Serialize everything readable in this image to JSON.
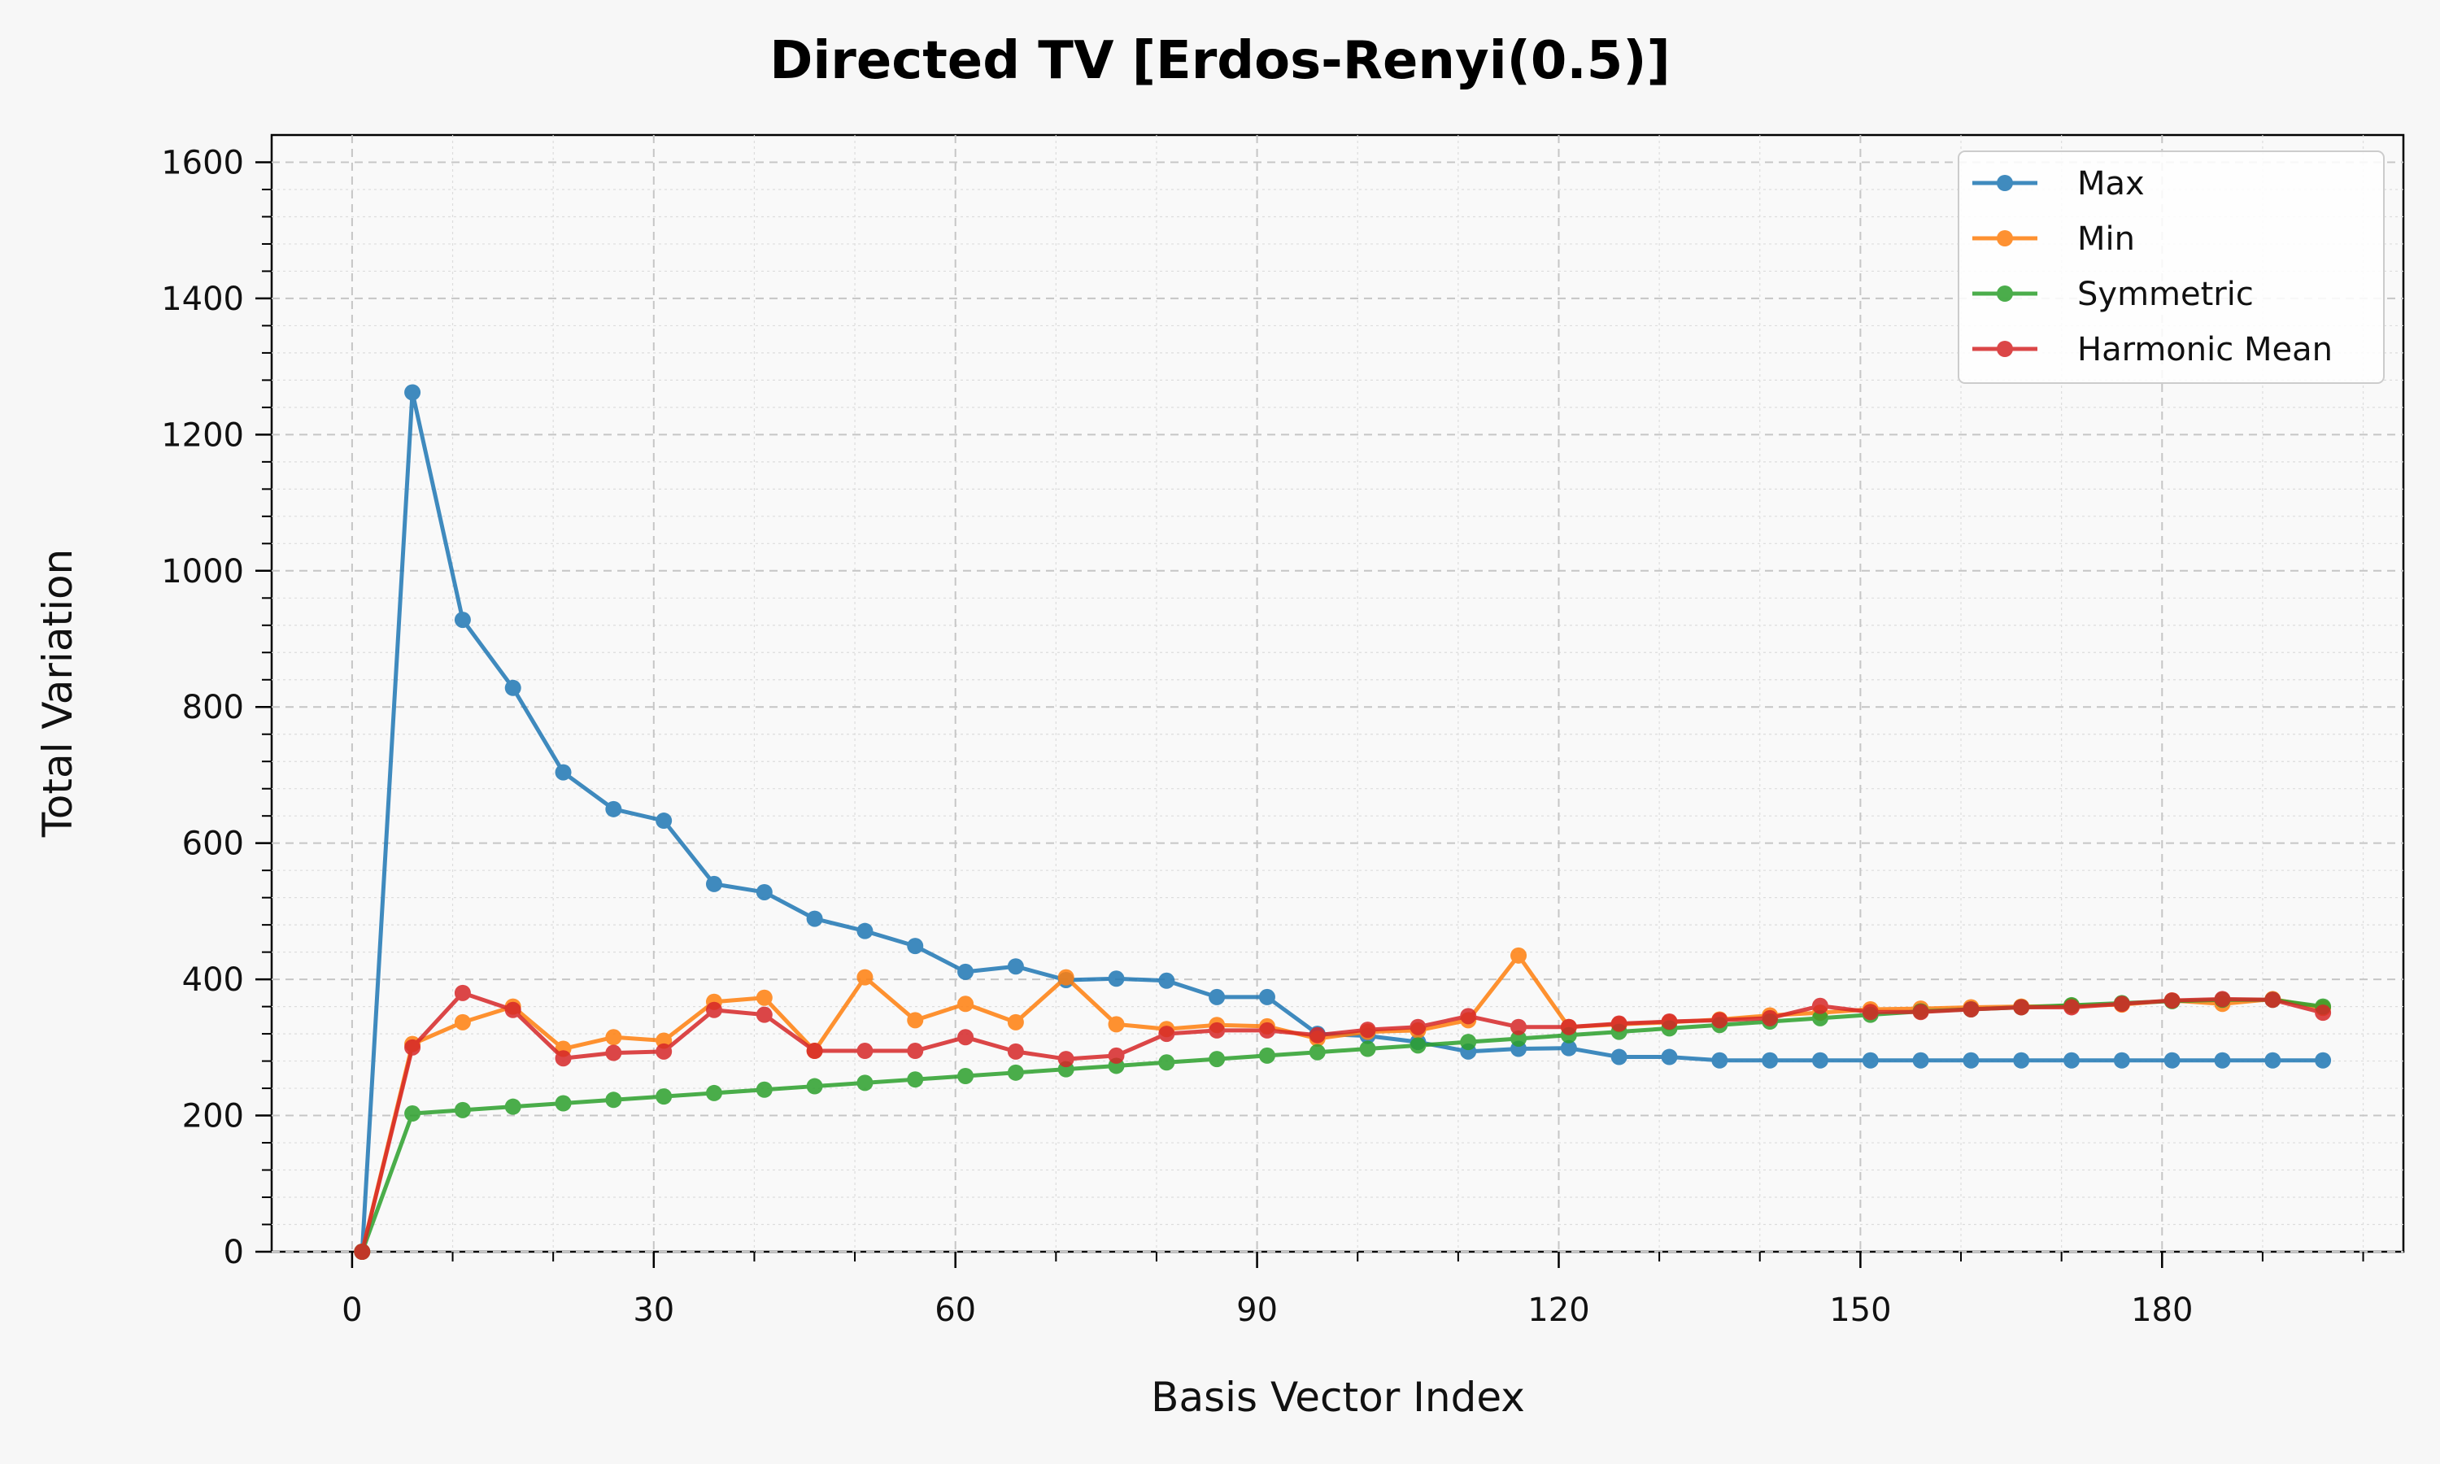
{
  "chart_data": {
    "type": "line",
    "title": "Directed TV [Erdos-Renyi(0.5)]",
    "xlabel": "Basis Vector Index",
    "ylabel": "Total Variation",
    "xlim": [
      -8,
      204
    ],
    "ylim": [
      0,
      1640
    ],
    "xticks": [
      0,
      30,
      60,
      90,
      120,
      150,
      180
    ],
    "yticks": [
      0,
      200,
      400,
      600,
      800,
      1000,
      1200,
      1400,
      1600
    ],
    "grid": true,
    "legend_position": "top-right",
    "x": [
      1,
      6,
      11,
      16,
      21,
      26,
      31,
      36,
      41,
      46,
      51,
      56,
      61,
      66,
      71,
      76,
      81,
      86,
      91,
      96,
      101,
      106,
      111,
      116,
      121,
      126,
      131,
      136,
      141,
      146,
      151,
      156,
      161,
      166,
      171,
      176,
      181,
      186,
      191,
      196
    ],
    "series": [
      {
        "name": "Max",
        "color": "#1f77b4",
        "values": [
          0,
          1262,
          928,
          828,
          704,
          650,
          633,
          540,
          528,
          489,
          471,
          449,
          411,
          419,
          399,
          401,
          398,
          374,
          374,
          320,
          317,
          308,
          294,
          298,
          299,
          286,
          286,
          281,
          281,
          281,
          281,
          281,
          281,
          281,
          281,
          281,
          281,
          281,
          281,
          281
        ]
      },
      {
        "name": "Min",
        "color": "#ff7f0e",
        "values": [
          0,
          305,
          337,
          360,
          298,
          315,
          310,
          367,
          373,
          295,
          403,
          340,
          364,
          337,
          403,
          334,
          327,
          333,
          331,
          313,
          323,
          325,
          340,
          435,
          330,
          334,
          337,
          341,
          347,
          351,
          356,
          357,
          359,
          360,
          361,
          363,
          369,
          364,
          371,
          358
        ]
      },
      {
        "name": "Symmetric",
        "color": "#2ca02c",
        "values": [
          0,
          203,
          208,
          213,
          218,
          223,
          228,
          233,
          238,
          243,
          248,
          253,
          258,
          263,
          268,
          273,
          278,
          283,
          288,
          293,
          298,
          303,
          308,
          313,
          318,
          323,
          328,
          333,
          338,
          343,
          348,
          353,
          356,
          359,
          362,
          365,
          368,
          370,
          370,
          360
        ]
      },
      {
        "name": "Harmonic Mean",
        "color": "#d62728",
        "values": [
          0,
          300,
          380,
          355,
          284,
          292,
          294,
          355,
          348,
          295,
          295,
          295,
          315,
          294,
          283,
          288,
          320,
          325,
          325,
          318,
          326,
          330,
          346,
          330,
          330,
          335,
          338,
          340,
          343,
          361,
          352,
          352,
          356,
          359,
          359,
          364,
          369,
          371,
          370,
          351
        ]
      }
    ]
  }
}
